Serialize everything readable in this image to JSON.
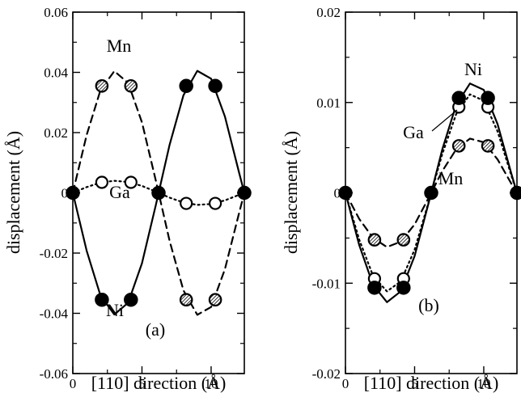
{
  "chart_data": [
    {
      "type": "line",
      "panel_label": "(a)",
      "xlabel": "[110] direction (Å)",
      "ylabel": "displacement (Å)",
      "xlim": [
        0,
        12.4
      ],
      "ylim": [
        -0.06,
        0.06
      ],
      "x_ticks": [
        0,
        5,
        10
      ],
      "x_tick_labels": [
        "0",
        "5",
        "10"
      ],
      "y_ticks": [
        -0.06,
        -0.04,
        -0.02,
        0,
        0.02,
        0.04,
        0.06
      ],
      "y_tick_labels": [
        "-0.06",
        "-0.04",
        "-0.02",
        "0",
        "0.02",
        "0.04",
        "0.06"
      ],
      "grid": false,
      "series": [
        {
          "name": "Ni",
          "marker": "filled-circle",
          "line_style": "solid",
          "points": [
            [
              0,
              0
            ],
            [
              2.1,
              -0.0355
            ],
            [
              4.2,
              -0.0355
            ],
            [
              6.2,
              0
            ],
            [
              8.2,
              0.0355
            ],
            [
              10.3,
              0.0355
            ],
            [
              12.4,
              0
            ]
          ],
          "curve": [
            [
              0,
              0
            ],
            [
              1,
              -0.0192
            ],
            [
              2,
              -0.0341
            ],
            [
              3,
              -0.0404
            ],
            [
              4,
              -0.0365
            ],
            [
              5,
              -0.0234
            ],
            [
              6,
              -0.0041
            ],
            [
              7,
              0.016
            ],
            [
              8,
              0.0324
            ],
            [
              9,
              0.0405
            ],
            [
              10,
              0.0379
            ],
            [
              11,
              0.0253
            ],
            [
              12,
              0.0071
            ],
            [
              12.4,
              0
            ]
          ]
        },
        {
          "name": "Mn",
          "marker": "hatched-circle",
          "line_style": "dashed",
          "points": [
            [
              0,
              0
            ],
            [
              2.1,
              0.0355
            ],
            [
              4.2,
              0.0355
            ],
            [
              6.2,
              0
            ],
            [
              8.2,
              -0.0355
            ],
            [
              10.3,
              -0.0355
            ],
            [
              12.4,
              0
            ]
          ],
          "curve": [
            [
              0,
              0
            ],
            [
              1,
              0.0192
            ],
            [
              2,
              0.0341
            ],
            [
              3,
              0.0404
            ],
            [
              4,
              0.0365
            ],
            [
              5,
              0.0234
            ],
            [
              6,
              0.0041
            ],
            [
              7,
              -0.016
            ],
            [
              8,
              -0.0324
            ],
            [
              9,
              -0.0405
            ],
            [
              10,
              -0.0379
            ],
            [
              11,
              -0.0253
            ],
            [
              12,
              -0.0071
            ],
            [
              12.4,
              0
            ]
          ]
        },
        {
          "name": "Ga",
          "marker": "open-circle",
          "line_style": "dotted",
          "points": [
            [
              0,
              0
            ],
            [
              2.1,
              0.0035
            ],
            [
              4.2,
              0.0035
            ],
            [
              6.2,
              0
            ],
            [
              8.2,
              -0.0035
            ],
            [
              10.3,
              -0.0035
            ],
            [
              12.4,
              0
            ]
          ],
          "curve": [
            [
              0,
              0
            ],
            [
              1,
              0.0019
            ],
            [
              2,
              0.0034
            ],
            [
              3,
              0.004
            ],
            [
              4,
              0.0036
            ],
            [
              5,
              0.0023
            ],
            [
              6,
              0.0004
            ],
            [
              7,
              -0.0016
            ],
            [
              8,
              -0.0032
            ],
            [
              9,
              -0.004
            ],
            [
              10,
              -0.0037
            ],
            [
              11,
              -0.0025
            ],
            [
              12,
              -0.0007
            ],
            [
              12.4,
              0
            ]
          ]
        }
      ],
      "annotations": [
        "Mn",
        "Ga",
        "Ni"
      ]
    },
    {
      "type": "line",
      "panel_label": "(b)",
      "xlabel": "[110] direction (Å)",
      "ylabel": "displacement (Å)",
      "xlim": [
        0,
        12.4
      ],
      "ylim": [
        -0.02,
        0.02
      ],
      "x_ticks": [
        0,
        5,
        10
      ],
      "x_tick_labels": [
        "0",
        "5",
        "10"
      ],
      "y_ticks": [
        -0.02,
        -0.01,
        0,
        0.01,
        0.02
      ],
      "y_tick_labels": [
        "-0.02",
        "-0.01",
        "0",
        "0.01",
        "0.02"
      ],
      "grid": false,
      "series": [
        {
          "name": "Ni",
          "marker": "filled-circle",
          "line_style": "solid",
          "points": [
            [
              0,
              0
            ],
            [
              2.1,
              -0.0105
            ],
            [
              4.2,
              -0.0105
            ],
            [
              6.2,
              0
            ],
            [
              8.2,
              0.0105
            ],
            [
              10.3,
              0.0105
            ],
            [
              12.4,
              0
            ]
          ],
          "curve": [
            [
              0,
              0
            ],
            [
              1,
              -0.0058
            ],
            [
              2,
              -0.0102
            ],
            [
              3,
              -0.0121
            ],
            [
              4,
              -0.0109
            ],
            [
              5,
              -0.007
            ],
            [
              6,
              -0.0012
            ],
            [
              7,
              0.0048
            ],
            [
              8,
              0.0097
            ],
            [
              9,
              0.0121
            ],
            [
              10,
              0.0114
            ],
            [
              11,
              0.0076
            ],
            [
              12,
              0.0021
            ],
            [
              12.4,
              0
            ]
          ]
        },
        {
          "name": "Ga",
          "marker": "open-circle",
          "line_style": "dotted",
          "points": [
            [
              0,
              0
            ],
            [
              2.1,
              -0.0095
            ],
            [
              4.2,
              -0.0095
            ],
            [
              6.2,
              0
            ],
            [
              8.2,
              0.0095
            ],
            [
              10.3,
              0.0095
            ],
            [
              12.4,
              0
            ]
          ],
          "curve": [
            [
              0,
              0
            ],
            [
              1,
              -0.0052
            ],
            [
              2,
              -0.0092
            ],
            [
              3,
              -0.0109
            ],
            [
              4,
              -0.0098
            ],
            [
              5,
              -0.0063
            ],
            [
              6,
              -0.0011
            ],
            [
              7,
              0.0043
            ],
            [
              8,
              0.0087
            ],
            [
              9,
              0.0109
            ],
            [
              10,
              0.0102
            ],
            [
              11,
              0.0068
            ],
            [
              12,
              0.0019
            ],
            [
              12.4,
              0
            ]
          ]
        },
        {
          "name": "Mn",
          "marker": "hatched-circle",
          "line_style": "dashed",
          "points": [
            [
              0,
              0
            ],
            [
              2.1,
              -0.0052
            ],
            [
              4.2,
              -0.0052
            ],
            [
              6.2,
              0
            ],
            [
              8.2,
              0.0052
            ],
            [
              10.3,
              0.0052
            ],
            [
              12.4,
              0
            ]
          ],
          "curve": [
            [
              0,
              0
            ],
            [
              1,
              -0.0029
            ],
            [
              2,
              -0.005
            ],
            [
              3,
              -0.006
            ],
            [
              4,
              -0.0054
            ],
            [
              5,
              -0.0035
            ],
            [
              6,
              -0.0006
            ],
            [
              7,
              0.0024
            ],
            [
              8,
              0.0048
            ],
            [
              9,
              0.006
            ],
            [
              10,
              0.0056
            ],
            [
              11,
              0.0037
            ],
            [
              12,
              0.001
            ],
            [
              12.4,
              0
            ]
          ]
        }
      ],
      "annotations": [
        "Ni",
        "Ga",
        "Mn"
      ]
    }
  ]
}
